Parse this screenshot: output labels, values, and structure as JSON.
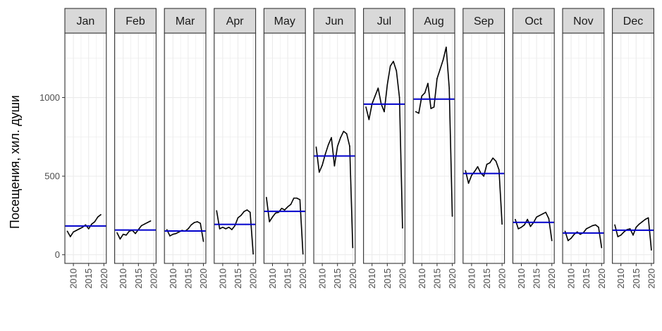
{
  "chart_data": {
    "type": "line",
    "ylabel": "Посещения, хил. души",
    "xlabel": "",
    "x_ticks": [
      2010,
      2015,
      2020
    ],
    "y_ticks": [
      0,
      500,
      1000
    ],
    "xlim": [
      2007.2,
      2020.8
    ],
    "ylim": [
      -55,
      1410
    ],
    "grid": true,
    "colors": {
      "series": "#000000",
      "mean_line": "#0000cc",
      "strip_fill": "#d9d9d9",
      "panel_border": "#333333",
      "grid": "#ebebeb"
    },
    "panels": [
      {
        "label": "Jan",
        "mean": 183,
        "x": [
          2008,
          2009,
          2010,
          2011,
          2012,
          2013,
          2014,
          2015,
          2016,
          2017,
          2018,
          2019
        ],
        "y": [
          150,
          115,
          145,
          155,
          165,
          175,
          190,
          165,
          195,
          210,
          240,
          255
        ]
      },
      {
        "label": "Feb",
        "mean": 157,
        "x": [
          2008,
          2009,
          2010,
          2011,
          2012,
          2013,
          2014,
          2015,
          2016,
          2017,
          2018,
          2019
        ],
        "y": [
          140,
          100,
          130,
          125,
          150,
          155,
          135,
          160,
          185,
          195,
          205,
          215
        ]
      },
      {
        "label": "Mar",
        "mean": 151,
        "x": [
          2008,
          2009,
          2010,
          2011,
          2012,
          2013,
          2014,
          2015,
          2016,
          2017,
          2018,
          2019,
          2020
        ],
        "y": [
          160,
          120,
          130,
          135,
          145,
          155,
          150,
          165,
          190,
          205,
          210,
          200,
          85
        ]
      },
      {
        "label": "Apr",
        "mean": 193,
        "x": [
          2008,
          2009,
          2010,
          2011,
          2012,
          2013,
          2014,
          2015,
          2016,
          2017,
          2018,
          2019,
          2020
        ],
        "y": [
          280,
          165,
          175,
          165,
          175,
          160,
          185,
          235,
          250,
          275,
          285,
          270,
          5
        ]
      },
      {
        "label": "May",
        "mean": 276,
        "x": [
          2008,
          2009,
          2010,
          2011,
          2012,
          2013,
          2014,
          2015,
          2016,
          2017,
          2018,
          2019,
          2020
        ],
        "y": [
          365,
          210,
          240,
          265,
          270,
          295,
          285,
          305,
          320,
          360,
          360,
          350,
          5
        ]
      },
      {
        "label": "Jun",
        "mean": 628,
        "x": [
          2008,
          2009,
          2010,
          2011,
          2012,
          2013,
          2014,
          2015,
          2016,
          2017,
          2018,
          2019,
          2020
        ],
        "y": [
          685,
          525,
          570,
          640,
          700,
          745,
          565,
          690,
          745,
          785,
          770,
          690,
          45
        ]
      },
      {
        "label": "Jul",
        "mean": 958,
        "x": [
          2008,
          2009,
          2010,
          2011,
          2012,
          2013,
          2014,
          2015,
          2016,
          2017,
          2018,
          2019,
          2020
        ],
        "y": [
          940,
          860,
          960,
          1010,
          1060,
          960,
          910,
          1080,
          1200,
          1230,
          1170,
          1000,
          170
        ]
      },
      {
        "label": "Aug",
        "mean": 990,
        "x": [
          2008,
          2009,
          2010,
          2011,
          2012,
          2013,
          2014,
          2015,
          2016,
          2017,
          2018,
          2019,
          2020
        ],
        "y": [
          910,
          900,
          1010,
          1030,
          1090,
          930,
          940,
          1120,
          1180,
          1240,
          1320,
          1060,
          245
        ]
      },
      {
        "label": "Sep",
        "mean": 517,
        "x": [
          2008,
          2009,
          2010,
          2011,
          2012,
          2013,
          2014,
          2015,
          2016,
          2017,
          2018,
          2019,
          2020
        ],
        "y": [
          535,
          455,
          505,
          530,
          560,
          520,
          500,
          575,
          585,
          615,
          595,
          540,
          195
        ]
      },
      {
        "label": "Oct",
        "mean": 206,
        "x": [
          2008,
          2009,
          2010,
          2011,
          2012,
          2013,
          2014,
          2015,
          2016,
          2017,
          2018,
          2019,
          2020
        ],
        "y": [
          225,
          165,
          175,
          190,
          225,
          180,
          205,
          240,
          250,
          260,
          270,
          230,
          90
        ]
      },
      {
        "label": "Nov",
        "mean": 138,
        "x": [
          2008,
          2009,
          2010,
          2011,
          2012,
          2013,
          2014,
          2015,
          2016,
          2017,
          2018,
          2019,
          2020
        ],
        "y": [
          150,
          90,
          105,
          130,
          145,
          130,
          140,
          165,
          175,
          185,
          190,
          175,
          45
        ]
      },
      {
        "label": "Dec",
        "mean": 156,
        "x": [
          2008,
          2009,
          2010,
          2011,
          2012,
          2013,
          2014,
          2015,
          2016,
          2017,
          2018,
          2019,
          2020
        ],
        "y": [
          190,
          115,
          125,
          145,
          160,
          165,
          125,
          175,
          195,
          210,
          225,
          235,
          30
        ]
      }
    ]
  }
}
